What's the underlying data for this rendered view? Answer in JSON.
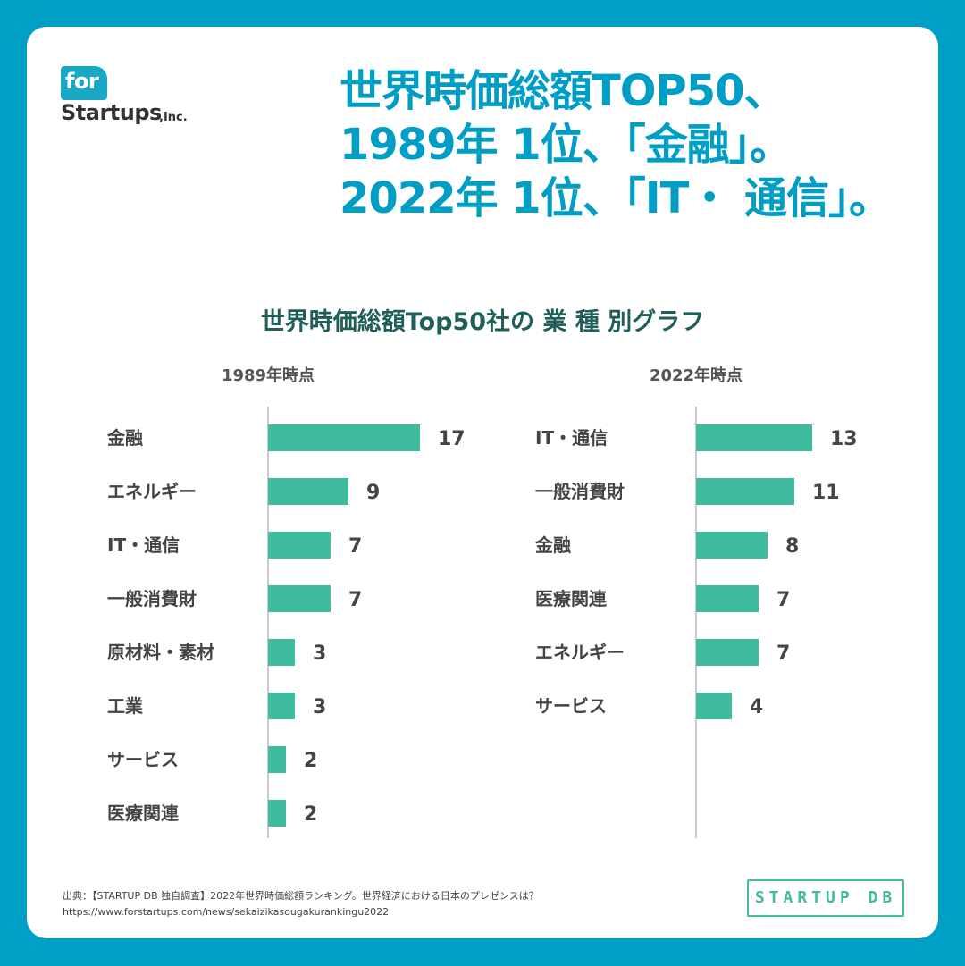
{
  "brand": {
    "logo_for": "for",
    "logo_name": "Startups",
    "logo_suffix": ",Inc."
  },
  "headline": {
    "line1": "世界時価総額TOP50、",
    "line2": "1989年 1位、「金融」。",
    "line3": "2022年 1位、「IT・ 通信」。"
  },
  "chart_title": "世界時価総額Top50社の 業 種 別グラフ",
  "colors": {
    "accent": "#00a0c6",
    "bar": "#3fbba0",
    "title": "#1f5f5a",
    "headline": "#009ec4"
  },
  "chart_data": [
    {
      "type": "bar",
      "orientation": "horizontal",
      "title": "1989年時点",
      "categories": [
        "金融",
        "エネルギー",
        "IT・通信",
        "一般消費財",
        "原材料・素材",
        "工業",
        "サービス",
        "医療関連"
      ],
      "values": [
        17,
        9,
        7,
        7,
        3,
        3,
        2,
        2
      ],
      "data_labels": [
        "17",
        "9",
        "7",
        "7",
        "3",
        "3",
        "2",
        "2"
      ]
    },
    {
      "type": "bar",
      "orientation": "horizontal",
      "title": "2022年時点",
      "categories": [
        "IT・通信",
        "一般消費財",
        "金融",
        "医療関連",
        "エネルギー",
        "サービス"
      ],
      "values": [
        13,
        11,
        8,
        7,
        7,
        4
      ],
      "data_labels": [
        "13",
        "11",
        "8",
        "7",
        "7",
        "4"
      ]
    }
  ],
  "footer": {
    "source": "出典：【STARTUP DB 独自調査】2022年世界時価総額ランキング。世界経済における日本のプレゼンスは？",
    "url": "https://www.forstartups.com/news/sekaizikasougakurankingu2022"
  },
  "stamp": "STARTUP DB"
}
